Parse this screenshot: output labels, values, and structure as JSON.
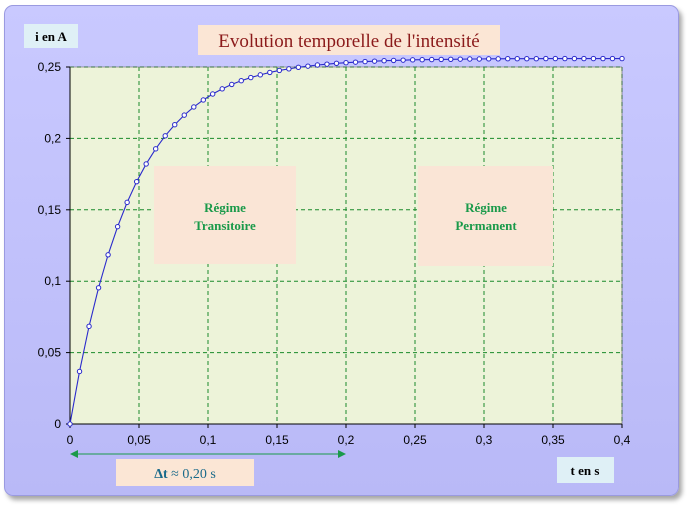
{
  "chart_data": {
    "type": "line",
    "title": "Evolution temporelle de l'intensité",
    "ylabel": "i en A",
    "xlabel": "t en s",
    "xlim": [
      0,
      0.4
    ],
    "ylim": [
      0,
      0.25
    ],
    "x_ticks": [
      0,
      0.05,
      0.1,
      0.15,
      0.2,
      0.25,
      0.3,
      0.35,
      0.4
    ],
    "x_tick_labels": [
      "0",
      "0,05",
      "0,1",
      "0,15",
      "0,2",
      "0,25",
      "0,3",
      "0,35",
      "0,4"
    ],
    "y_ticks": [
      0,
      0.05,
      0.1,
      0.15,
      0.2,
      0.25
    ],
    "y_tick_labels": [
      "0",
      "0,05",
      "0,1",
      "0,15",
      "0,2",
      "0,25"
    ],
    "grid": true,
    "series": [
      {
        "x": [
          0,
          0.0069,
          0.0138,
          0.0207,
          0.0276,
          0.0345,
          0.0414,
          0.0483,
          0.0552,
          0.0621,
          0.069,
          0.0759,
          0.0828,
          0.0897,
          0.0966,
          0.1034,
          0.1103,
          0.1172,
          0.1241,
          0.131,
          0.1379,
          0.1448,
          0.1517,
          0.1586,
          0.1655,
          0.1724,
          0.1793,
          0.1862,
          0.1931,
          0.2,
          0.2069,
          0.2138,
          0.2207,
          0.2276,
          0.2345,
          0.2414,
          0.2483,
          0.2552,
          0.2621,
          0.269,
          0.2759,
          0.2828,
          0.2897,
          0.2966,
          0.3034,
          0.3103,
          0.3172,
          0.3241,
          0.331,
          0.3379,
          0.3448,
          0.3517,
          0.3586,
          0.3655,
          0.3724,
          0.3793,
          0.3862,
          0.3931,
          0.4
        ],
        "y": [
          0,
          0.0368,
          0.0684,
          0.0954,
          0.1185,
          0.1382,
          0.1552,
          0.1697,
          0.1821,
          0.1927,
          0.2018,
          0.2096,
          0.2163,
          0.222,
          0.2269,
          0.2311,
          0.2347,
          0.2378,
          0.2404,
          0.2426,
          0.2445,
          0.2462,
          0.2476,
          0.2487,
          0.2498,
          0.2506,
          0.2514,
          0.252,
          0.2526,
          0.253,
          0.2534,
          0.2538,
          0.2541,
          0.2544,
          0.2546,
          0.2548,
          0.255,
          0.2551,
          0.2552,
          0.2553,
          0.2554,
          0.2555,
          0.2556,
          0.2556,
          0.2557,
          0.2557,
          0.2558,
          0.2558,
          0.2558,
          0.2558,
          0.2559,
          0.2559,
          0.2559,
          0.2559,
          0.2559,
          0.2559,
          0.2559,
          0.2559,
          0.2559
        ]
      }
    ],
    "annotations": {
      "transitoire": [
        "Régime",
        "Transitoire"
      ],
      "permanent": [
        "Régime",
        "Permanent"
      ],
      "delta_symbol": "Δt",
      "delta_value": " ≈ 0,20 s",
      "delta_t": 0.2
    },
    "colors": {
      "frame": "#c0c0fb",
      "plot_bg": "#edf3d9",
      "grid": "#1a8a2a",
      "line": "#2a2acc",
      "marker_fill": "#ffffff",
      "region_box": "#fae5d6",
      "region_text": "#1a9a4a",
      "title_box": "#fbe6d5",
      "title_text": "#8b1a1a",
      "axis_label_box": "#dff0f6",
      "delta_arrow": "#1a9a4a"
    }
  }
}
